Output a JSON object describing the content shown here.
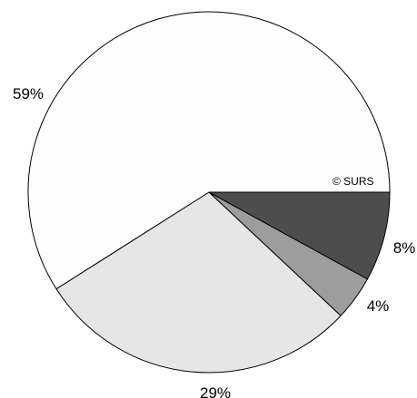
{
  "chart_data": {
    "type": "pie",
    "slices": [
      {
        "label": "8%",
        "value": 8,
        "color": "#4d4d4d"
      },
      {
        "label": "4%",
        "value": 4,
        "color": "#9d9d9d"
      },
      {
        "label": "29%",
        "value": 29,
        "color": "#e6e6e6"
      },
      {
        "label": "59%",
        "value": 59,
        "color": "#fdfdfd"
      }
    ],
    "start_angle_deg": 0,
    "direction": "clockwise",
    "outline_color": "#000000",
    "legend": "none"
  },
  "watermark": "© SURS"
}
